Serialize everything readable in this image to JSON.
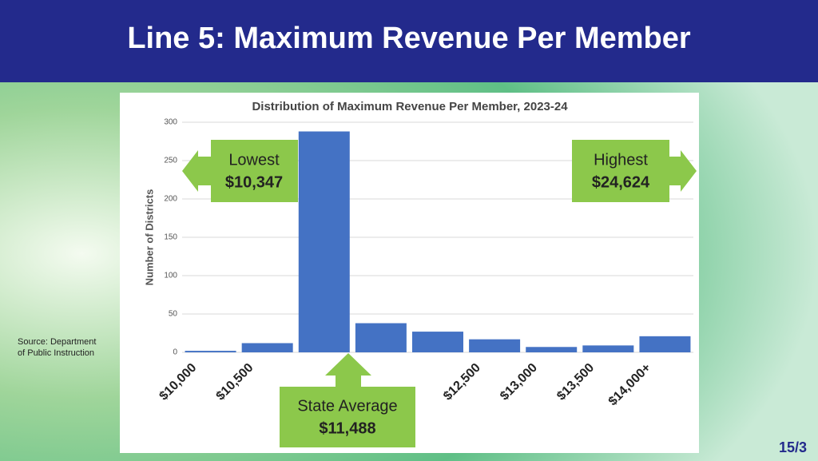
{
  "slide": {
    "title": "Line 5: Maximum Revenue Per Member",
    "source": [
      "Source: Department",
      "of Public Instruction"
    ],
    "page": "15/3"
  },
  "chart_data": {
    "type": "bar",
    "title": "Distribution of Maximum Revenue Per Member, 2023-24",
    "y_label": "Number of Districts",
    "categories": [
      "$10,000",
      "$10,500",
      null,
      null,
      null,
      "$12,500",
      "$13,000",
      "$13,500",
      "$14,000+"
    ],
    "values": [
      2,
      12,
      288,
      38,
      27,
      17,
      7,
      9,
      21
    ],
    "color": "#4472c4",
    "ylim": [
      0,
      300
    ],
    "yticks": [
      0,
      50,
      100,
      150,
      200,
      250,
      300
    ],
    "grid": true,
    "annotations": [
      {
        "label": "Lowest",
        "value": "$10,347"
      },
      {
        "label": "Highest",
        "value": "$24,624"
      },
      {
        "label": "State Average",
        "value": "$11,488"
      }
    ]
  }
}
